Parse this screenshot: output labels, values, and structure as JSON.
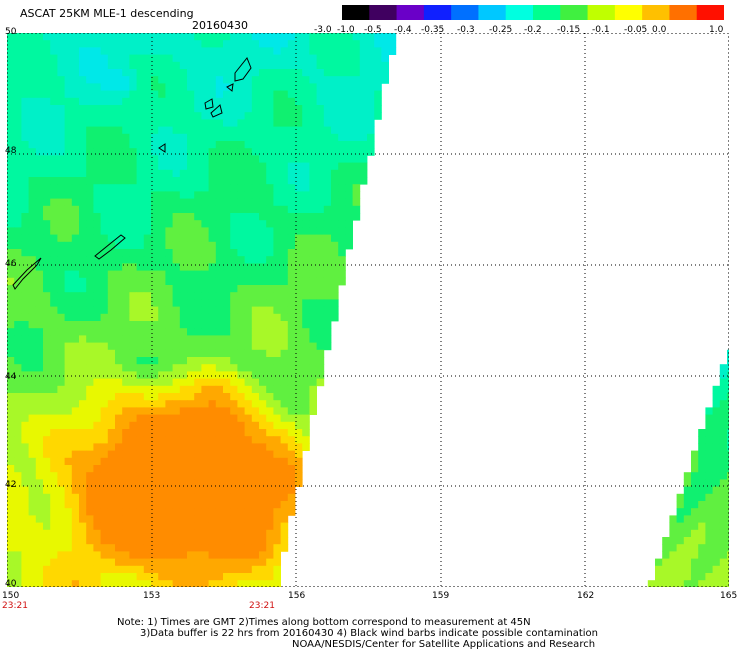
{
  "header": {
    "title": "ASCAT 25KM MLE-1 descending",
    "date": "20160430"
  },
  "legend": {
    "labels": [
      "-3.0",
      "-1.0",
      "-0.5",
      "-0.4",
      "-0.35",
      "-0.3",
      "-0.25",
      "-0.2",
      "-0.15",
      "-0.1",
      "-0.05",
      "0.0",
      "1.0"
    ],
    "colors": [
      "#000000",
      "#400060",
      "#6a00c8",
      "#1020ff",
      "#0070ff",
      "#00c8ff",
      "#00ffe0",
      "#00ff90",
      "#40f040",
      "#c0ff00",
      "#ffff00",
      "#ffc000",
      "#ff7000",
      "#ff1000"
    ]
  },
  "map": {
    "lat_labels": [
      "50",
      "48",
      "46",
      "44",
      "42",
      "40"
    ],
    "lon_labels": [
      "150",
      "153",
      "156",
      "159",
      "162",
      "165"
    ],
    "time_labels": [
      "23:21",
      "23:21"
    ]
  },
  "footer": {
    "note1": "Note: 1) Times are GMT 2)Times along bottom correspond to measurement at 45N",
    "note2": "3)Data buffer is 22 hrs from 20160430 4) Black wind barbs indicate possible contamination",
    "credit": "NOAA/NESDIS/Center for Satellite Applications and Research"
  }
}
